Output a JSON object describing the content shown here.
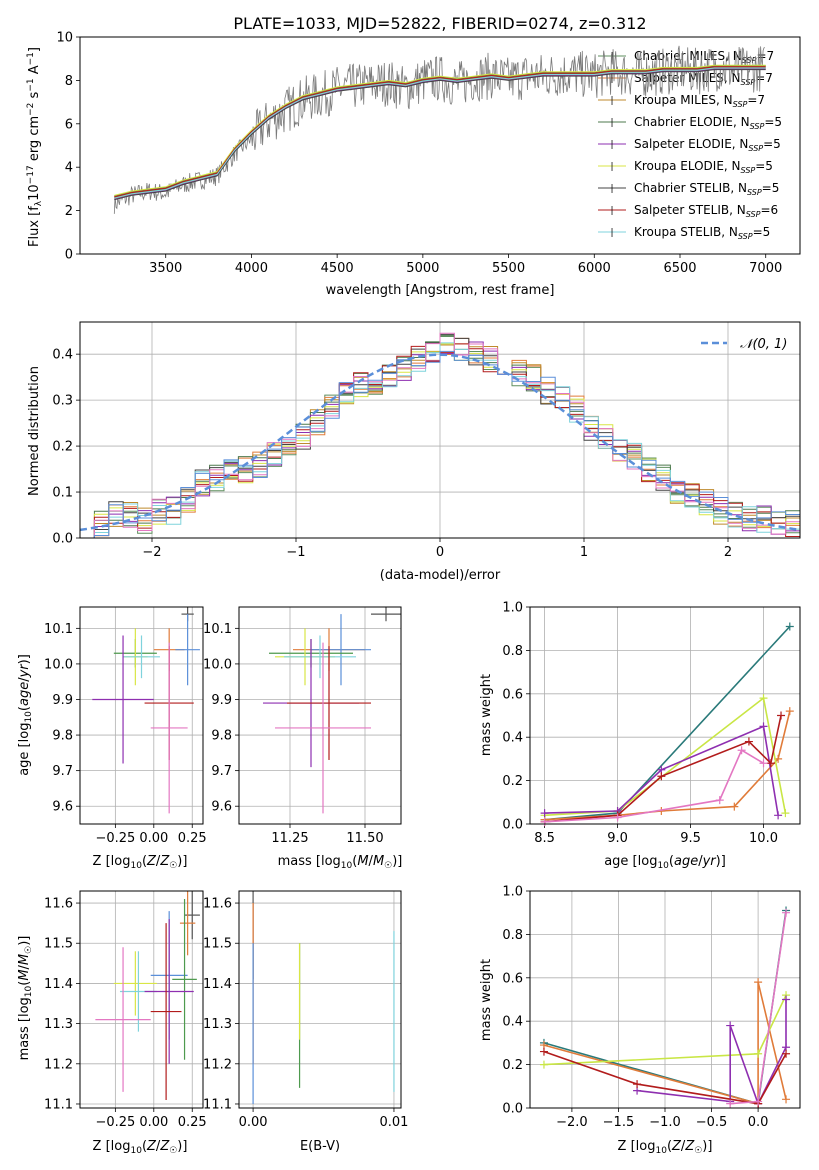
{
  "title": "PLATE=1033, MJD=52822, FIBERID=0274, z=0.312",
  "series_colors": [
    "#a0a0a0",
    "#e07b39",
    "#bf8a2c",
    "#4e9a4e",
    "#8e2fb0",
    "#d9e645",
    "#555555",
    "#b21c1c",
    "#7fd3dc",
    "#e377c2",
    "#5b8fd9"
  ],
  "models": [
    {
      "name": "Chabrier MILES",
      "nssp": "7",
      "color": "#5f8f5f"
    },
    {
      "name": "Salpeter MILES",
      "nssp": "7",
      "color": "#e07b39"
    },
    {
      "name": "Kroupa MILES",
      "nssp": "7",
      "color": "#bf8a2c"
    },
    {
      "name": "Chabrier ELODIE",
      "nssp": "5",
      "color": "#4e7a4e"
    },
    {
      "name": "Salpeter ELODIE",
      "nssp": "5",
      "color": "#8e2fb0"
    },
    {
      "name": "Kroupa ELODIE",
      "nssp": "5",
      "color": "#d9e645"
    },
    {
      "name": "Chabrier STELIB",
      "nssp": "5",
      "color": "#444444"
    },
    {
      "name": "Salpeter STELIB",
      "nssp": "6",
      "color": "#b21c1c"
    },
    {
      "name": "Kroupa STELIB",
      "nssp": "5",
      "color": "#7fd3dc"
    }
  ],
  "chart_data": [
    {
      "id": "spectrum",
      "type": "line",
      "xlabel": "wavelength [Angstrom, rest frame]",
      "ylabel": "Flux [f_λ 10^-17 erg cm^-2 s^-1 A^-1]",
      "xlim": [
        3000,
        7200
      ],
      "ylim": [
        0,
        10
      ],
      "xticks": [
        3500,
        4000,
        4500,
        5000,
        5500,
        6000,
        6500,
        7000
      ],
      "yticks": [
        0,
        2,
        4,
        6,
        8,
        10
      ],
      "data_x": [
        3200,
        3300,
        3400,
        3500,
        3600,
        3700,
        3800,
        3900,
        4000,
        4100,
        4200,
        4300,
        4400,
        4500,
        4600,
        4700,
        4800,
        4900,
        5000,
        5100,
        5200,
        5300,
        5400,
        5500,
        5600,
        5700,
        5800,
        5900,
        6000,
        6100,
        6200,
        6300,
        6400,
        6500,
        6600,
        6700,
        6800,
        6900,
        7000
      ],
      "data_y": [
        2.3,
        2.7,
        2.9,
        2.8,
        3.2,
        3.4,
        3.6,
        4.6,
        5.3,
        6.1,
        6.6,
        7.1,
        7.3,
        7.6,
        7.7,
        7.8,
        7.9,
        7.6,
        8.0,
        8.1,
        7.8,
        8.1,
        8.2,
        8.0,
        8.2,
        8.2,
        8.3,
        8.3,
        8.2,
        8.4,
        8.3,
        8.3,
        8.4,
        8.5,
        8.4,
        8.6,
        8.5,
        8.5,
        8.6
      ],
      "model_y": [
        2.6,
        2.8,
        2.9,
        3.0,
        3.3,
        3.5,
        3.7,
        4.8,
        5.6,
        6.3,
        6.8,
        7.2,
        7.4,
        7.6,
        7.7,
        7.8,
        7.9,
        7.8,
        8.0,
        8.1,
        8.0,
        8.1,
        8.2,
        8.1,
        8.2,
        8.3,
        8.3,
        8.3,
        8.3,
        8.4,
        8.4,
        8.4,
        8.5,
        8.5,
        8.5,
        8.6,
        8.6,
        8.6,
        8.6
      ]
    },
    {
      "id": "residuals",
      "type": "area",
      "xlabel": "(data-model)/error",
      "ylabel": "Normed distribution",
      "xlim": [
        -2.5,
        2.5
      ],
      "ylim": [
        0,
        0.47
      ],
      "xticks": [
        -2,
        -1,
        0,
        1,
        2
      ],
      "yticks": [
        0.0,
        0.1,
        0.2,
        0.3,
        0.4
      ],
      "legend": "N(0,1)",
      "bin_edges_start": -2.5,
      "bin_width": 0.1,
      "hist": [
        0.02,
        0.03,
        0.05,
        0.05,
        0.04,
        0.06,
        0.06,
        0.08,
        0.12,
        0.13,
        0.14,
        0.15,
        0.16,
        0.18,
        0.19,
        0.22,
        0.25,
        0.29,
        0.31,
        0.33,
        0.33,
        0.35,
        0.37,
        0.39,
        0.4,
        0.42,
        0.41,
        0.4,
        0.39,
        0.38,
        0.36,
        0.35,
        0.32,
        0.3,
        0.28,
        0.24,
        0.22,
        0.19,
        0.18,
        0.15,
        0.13,
        0.1,
        0.09,
        0.08,
        0.06,
        0.05,
        0.04,
        0.04,
        0.03,
        0.03
      ]
    },
    {
      "id": "age_vs_Z",
      "type": "scatter",
      "xlabel": "Z [log10(Z/Z☉)]",
      "ylabel": "age [log10(age/yr)]",
      "xlim": [
        -0.48,
        0.32
      ],
      "ylim": [
        9.55,
        10.16
      ],
      "xticks": [
        -0.25,
        0.0,
        0.25
      ],
      "xtick_labels": [
        "−0.25",
        "0.00",
        "0.25"
      ],
      "yticks": [
        9.6,
        9.7,
        9.8,
        9.9,
        10.0,
        10.1
      ],
      "points": [
        {
          "x": 0.22,
          "y": 10.14,
          "xerr": 0.04,
          "yerr": 0.02
        },
        {
          "x": 0.1,
          "y": 10.04,
          "xerr": 0.1,
          "yerr": 0.06
        },
        {
          "x": 0.22,
          "y": 10.04,
          "xerr": 0.08,
          "yerr": 0.1
        },
        {
          "x": -0.12,
          "y": 10.03,
          "xerr": 0.14,
          "yerr": 0.04
        },
        {
          "x": -0.12,
          "y": 10.02,
          "xerr": 0.08,
          "yerr": 0.08
        },
        {
          "x": -0.08,
          "y": 10.02,
          "xerr": 0.12,
          "yerr": 0.06
        },
        {
          "x": -0.2,
          "y": 9.9,
          "xerr": 0.2,
          "yerr": 0.18
        },
        {
          "x": 0.1,
          "y": 9.89,
          "xerr": 0.16,
          "yerr": 0.16
        },
        {
          "x": 0.1,
          "y": 9.82,
          "xerr": 0.12,
          "yerr": 0.24
        }
      ]
    },
    {
      "id": "age_vs_mass",
      "type": "scatter",
      "xlabel": "mass [log10(M/M☉)]",
      "ylabel": "",
      "xlim": [
        11.08,
        11.62
      ],
      "ylim": [
        9.55,
        10.16
      ],
      "xticks": [
        11.25,
        11.5
      ],
      "xtick_labels": [
        "11.25",
        "11.50"
      ],
      "yticks": [
        9.6,
        9.7,
        9.8,
        9.9,
        10.0,
        10.1
      ],
      "points": [
        {
          "x": 11.57,
          "y": 10.14,
          "xerr": 0.05,
          "yerr": 0.02
        },
        {
          "x": 11.38,
          "y": 10.04,
          "xerr": 0.12,
          "yerr": 0.06
        },
        {
          "x": 11.42,
          "y": 10.04,
          "xerr": 0.1,
          "yerr": 0.1
        },
        {
          "x": 11.32,
          "y": 10.03,
          "xerr": 0.14,
          "yerr": 0.04
        },
        {
          "x": 11.3,
          "y": 10.02,
          "xerr": 0.1,
          "yerr": 0.08
        },
        {
          "x": 11.35,
          "y": 10.02,
          "xerr": 0.12,
          "yerr": 0.06
        },
        {
          "x": 11.32,
          "y": 9.89,
          "xerr": 0.16,
          "yerr": 0.18
        },
        {
          "x": 11.38,
          "y": 9.89,
          "xerr": 0.14,
          "yerr": 0.16
        },
        {
          "x": 11.36,
          "y": 9.82,
          "xerr": 0.16,
          "yerr": 0.24
        }
      ]
    },
    {
      "id": "weight_vs_age",
      "type": "line",
      "xlabel": "age [log10(age/yr)]",
      "ylabel": "mass weight",
      "xlim": [
        8.4,
        10.25
      ],
      "ylim": [
        0,
        1
      ],
      "xticks": [
        8.5,
        9.0,
        9.5,
        10.0
      ],
      "xtick_labels": [
        "8.5",
        "9.0",
        "9.5",
        "10.0"
      ],
      "yticks": [
        0.0,
        0.2,
        0.4,
        0.6,
        0.8,
        1.0
      ],
      "series": [
        {
          "x": [
            8.5,
            9.0,
            10.18
          ],
          "y": [
            0.02,
            0.05,
            0.91
          ]
        },
        {
          "x": [
            8.5,
            9.0,
            9.3,
            9.8,
            10.1,
            10.18
          ],
          "y": [
            0.02,
            0.04,
            0.06,
            0.08,
            0.3,
            0.52
          ]
        },
        {
          "x": [
            8.5,
            9.0,
            10.0,
            10.15
          ],
          "y": [
            0.04,
            0.06,
            0.58,
            0.05
          ]
        },
        {
          "x": [
            8.5,
            9.0,
            9.3,
            10.0,
            10.1
          ],
          "y": [
            0.05,
            0.06,
            0.25,
            0.45,
            0.04
          ]
        },
        {
          "x": [
            8.5,
            9.0,
            9.3,
            9.9,
            10.05,
            10.12
          ],
          "y": [
            0.01,
            0.04,
            0.22,
            0.38,
            0.28,
            0.5
          ]
        },
        {
          "x": [
            8.5,
            9.0,
            9.7,
            9.85,
            10.0
          ],
          "y": [
            0.01,
            0.03,
            0.11,
            0.34,
            0.28
          ]
        }
      ]
    },
    {
      "id": "mass_vs_Z",
      "type": "scatter",
      "xlabel": "Z [log10(Z/Z☉)]",
      "ylabel": "mass [log10(M/M☉)]",
      "xlim": [
        -0.48,
        0.32
      ],
      "ylim": [
        11.09,
        11.63
      ],
      "xticks": [
        -0.25,
        0.0,
        0.25
      ],
      "xtick_labels": [
        "−0.25",
        "0.00",
        "0.25"
      ],
      "yticks": [
        11.1,
        11.2,
        11.3,
        11.4,
        11.5,
        11.6
      ],
      "points": [
        {
          "x": 0.25,
          "y": 11.57,
          "xerr": 0.05,
          "yerr": 0.06
        },
        {
          "x": 0.22,
          "y": 11.55,
          "xerr": 0.05,
          "yerr": 0.08
        },
        {
          "x": 0.1,
          "y": 11.42,
          "xerr": 0.12,
          "yerr": 0.16
        },
        {
          "x": 0.2,
          "y": 11.41,
          "xerr": 0.08,
          "yerr": 0.2
        },
        {
          "x": -0.12,
          "y": 11.4,
          "xerr": 0.14,
          "yerr": 0.08
        },
        {
          "x": -0.1,
          "y": 11.38,
          "xerr": 0.12,
          "yerr": 0.1
        },
        {
          "x": 0.1,
          "y": 11.38,
          "xerr": 0.16,
          "yerr": 0.18
        },
        {
          "x": 0.08,
          "y": 11.33,
          "xerr": 0.1,
          "yerr": 0.22
        },
        {
          "x": -0.2,
          "y": 11.31,
          "xerr": 0.18,
          "yerr": 0.18
        }
      ]
    },
    {
      "id": "mass_vs_ebv",
      "type": "scatter",
      "xlabel": "E(B-V)",
      "ylabel": "",
      "xlim": [
        -0.001,
        0.0105
      ],
      "ylim": [
        11.09,
        11.63
      ],
      "xticks": [
        0.0,
        0.01
      ],
      "xtick_labels": [
        "0.00",
        "0.01"
      ],
      "yticks": [
        11.1,
        11.2,
        11.3,
        11.4,
        11.5,
        11.6
      ],
      "points": [
        {
          "x": 0.0,
          "y": 11.52,
          "xerr": 0,
          "yerr": 0.11
        },
        {
          "x": 0.0,
          "y": 11.4,
          "xerr": 0,
          "yerr": 0.2
        },
        {
          "x": 0.0,
          "y": 11.3,
          "xerr": 0,
          "yerr": 0.2
        },
        {
          "x": 0.0033,
          "y": 11.32,
          "xerr": 0,
          "yerr": 0.18
        },
        {
          "x": 0.0033,
          "y": 11.38,
          "xerr": 0,
          "yerr": 0.12
        },
        {
          "x": 0.01,
          "y": 11.33,
          "xerr": 0,
          "yerr": 0.2
        }
      ]
    },
    {
      "id": "weight_vs_Z",
      "type": "line",
      "xlabel": "Z [log10(Z/Z☉)]",
      "ylabel": "mass weight",
      "xlim": [
        -2.45,
        0.45
      ],
      "ylim": [
        0,
        1
      ],
      "xticks": [
        -2.0,
        -1.5,
        -1.0,
        -0.5,
        0.0
      ],
      "xtick_labels": [
        "−2.0",
        "−1.5",
        "−1.0",
        "−0.5",
        "0.0"
      ],
      "yticks": [
        0.0,
        0.2,
        0.4,
        0.6,
        0.8,
        1.0
      ],
      "series": [
        {
          "x": [
            -2.3,
            0.0,
            0.3
          ],
          "y": [
            0.3,
            0.02,
            0.91
          ]
        },
        {
          "x": [
            -2.3,
            0.0,
            0.0,
            0.3
          ],
          "y": [
            0.29,
            0.02,
            0.58,
            0.04
          ]
        },
        {
          "x": [
            -2.3,
            0.0,
            0.3
          ],
          "y": [
            0.2,
            0.25,
            0.52
          ]
        },
        {
          "x": [
            -1.3,
            -0.3,
            -0.3,
            0.0,
            0.3,
            0.3
          ],
          "y": [
            0.08,
            0.03,
            0.38,
            0.02,
            0.28,
            0.5
          ]
        },
        {
          "x": [
            -2.3,
            -1.3,
            0.0,
            0.3
          ],
          "y": [
            0.26,
            0.11,
            0.02,
            0.25
          ]
        },
        {
          "x": [
            -0.3,
            0.0,
            0.3
          ],
          "y": [
            0.02,
            0.03,
            0.9
          ]
        }
      ]
    }
  ]
}
